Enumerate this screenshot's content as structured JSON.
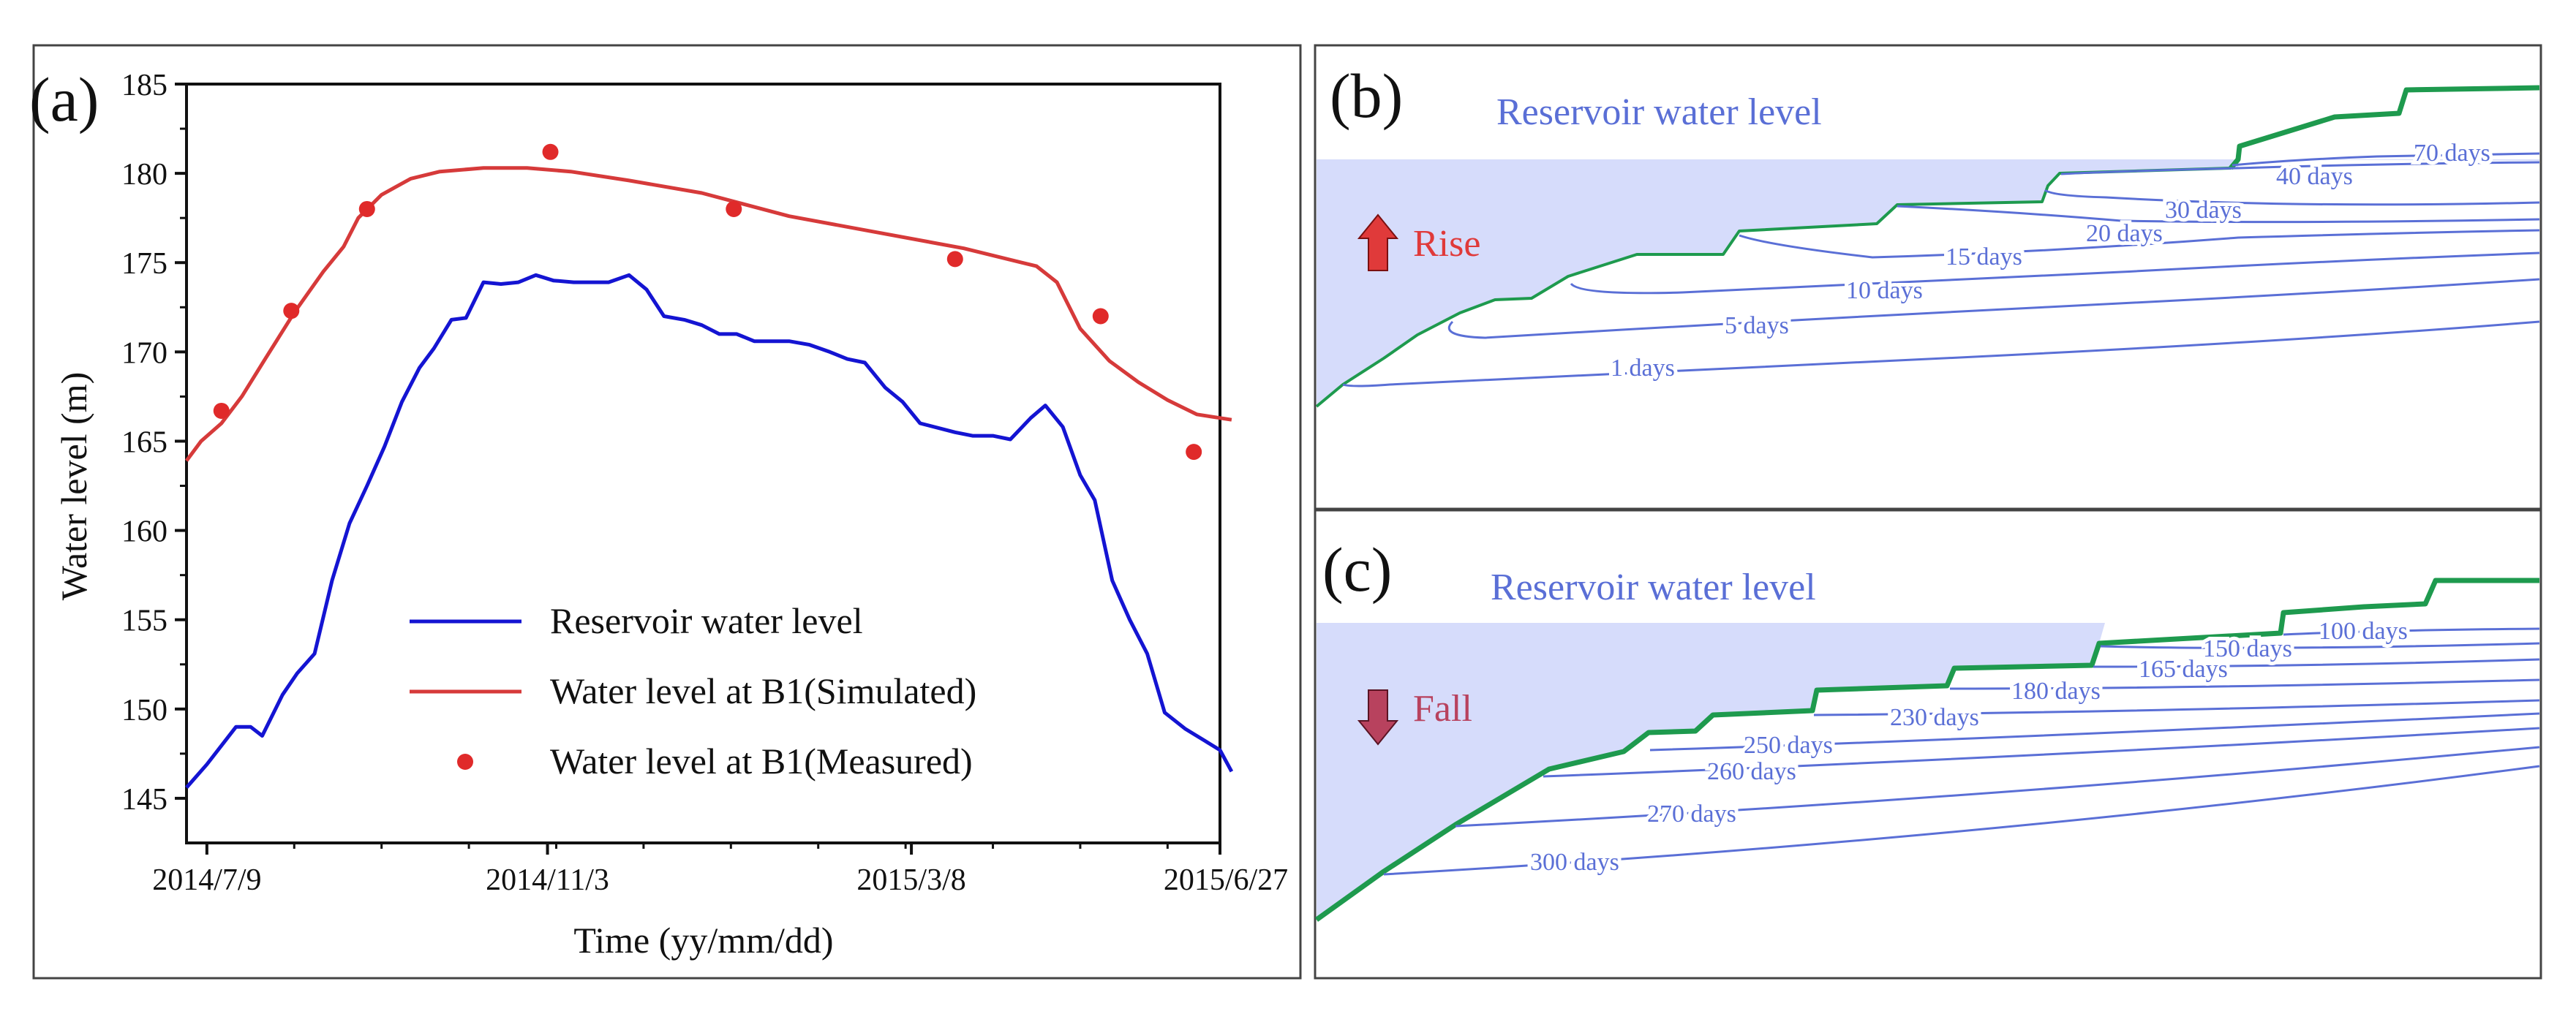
{
  "colors": {
    "reservoir_line": "#1414d2",
    "simulated_line": "#d63a3a",
    "measured_point": "#e02a2a",
    "shade": "#d6dcfb",
    "contour": "#5a6fd6",
    "reservoir_label": "#5a6fd6",
    "green_line": "#1e9a4e",
    "rise": "#e03a3a",
    "fall": "#b8425e"
  },
  "chart_data": [
    {
      "type": "line",
      "panel_label": "(a)",
      "title": "",
      "xlabel": "Time (yy/mm/dd)",
      "ylabel": "Water level (m)",
      "ylim": [
        142.5,
        185
      ],
      "xlim": [
        -7,
        348
      ],
      "x_unit": "days since 2014/7/9",
      "yticks": [
        145,
        150,
        155,
        160,
        165,
        170,
        175,
        180,
        185
      ],
      "xticks": [
        {
          "x": 0,
          "label": "2014/7/9"
        },
        {
          "x": 117,
          "label": "2014/11/3"
        },
        {
          "x": 242,
          "label": "2015/3/8"
        },
        {
          "x": 353,
          "label": "2015/6/27"
        }
      ],
      "legend_position": "lower-center",
      "series": [
        {
          "name": "Reservoir water level",
          "kind": "line",
          "points": [
            [
              -7,
              145.6
            ],
            [
              0,
              146.9
            ],
            [
              10,
              149
            ],
            [
              15,
              149
            ],
            [
              19,
              148.5
            ],
            [
              26,
              150.8
            ],
            [
              31,
              152
            ],
            [
              37,
              153.1
            ],
            [
              43,
              157.2
            ],
            [
              49,
              160.4
            ],
            [
              55,
              162.5
            ],
            [
              61,
              164.7
            ],
            [
              67,
              167.2
            ],
            [
              73,
              169.1
            ],
            [
              78,
              170.2
            ],
            [
              84,
              171.8
            ],
            [
              89,
              171.9
            ],
            [
              95,
              173.9
            ],
            [
              101,
              173.8
            ],
            [
              107,
              173.9
            ],
            [
              113,
              174.3
            ],
            [
              119,
              174
            ],
            [
              126,
              173.9
            ],
            [
              132,
              173.9
            ],
            [
              138,
              173.9
            ],
            [
              145,
              174.3
            ],
            [
              151,
              173.5
            ],
            [
              157,
              172
            ],
            [
              164,
              171.8
            ],
            [
              170,
              171.5
            ],
            [
              176,
              171
            ],
            [
              182,
              171
            ],
            [
              188,
              170.6
            ],
            [
              200,
              170.6
            ],
            [
              207,
              170.4
            ],
            [
              214,
              170
            ],
            [
              220,
              169.6
            ],
            [
              226,
              169.4
            ],
            [
              233,
              168
            ],
            [
              239,
              167.2
            ],
            [
              245,
              166
            ],
            [
              257,
              165.5
            ],
            [
              263,
              165.3
            ],
            [
              270,
              165.3
            ],
            [
              276,
              165.1
            ],
            [
              283,
              166.3
            ],
            [
              288,
              167
            ],
            [
              294,
              165.8
            ],
            [
              300,
              163.1
            ],
            [
              305,
              161.7
            ],
            [
              311,
              157.2
            ],
            [
              317,
              155
            ],
            [
              323,
              153.1
            ],
            [
              329,
              149.8
            ],
            [
              336,
              148.9
            ],
            [
              343,
              148.2
            ],
            [
              348,
              147.7
            ],
            [
              352,
              146.5
            ]
          ]
        },
        {
          "name": "Water level at B1(Simulated)",
          "kind": "line",
          "points": [
            [
              -7,
              163.9
            ],
            [
              -2,
              165
            ],
            [
              5,
              166
            ],
            [
              12,
              167.5
            ],
            [
              20,
              169.6
            ],
            [
              30,
              172.2
            ],
            [
              40,
              174.5
            ],
            [
              47,
              175.9
            ],
            [
              52,
              177.5
            ],
            [
              60,
              178.8
            ],
            [
              70,
              179.7
            ],
            [
              80,
              180.1
            ],
            [
              95,
              180.3
            ],
            [
              110,
              180.3
            ],
            [
              125,
              180.1
            ],
            [
              145,
              179.6
            ],
            [
              170,
              178.9
            ],
            [
              200,
              177.6
            ],
            [
              230,
              176.7
            ],
            [
              260,
              175.8
            ],
            [
              285,
              174.8
            ],
            [
              292,
              173.9
            ],
            [
              300,
              171.3
            ],
            [
              310,
              169.5
            ],
            [
              320,
              168.3
            ],
            [
              330,
              167.3
            ],
            [
              340,
              166.5
            ],
            [
              352,
              166.2
            ]
          ]
        },
        {
          "name": "Water level at B1(Measured)",
          "kind": "scatter",
          "points": [
            [
              5,
              166.7
            ],
            [
              29,
              172.3
            ],
            [
              55,
              178
            ],
            [
              118,
              181.2
            ],
            [
              181,
              178
            ],
            [
              257,
              175.2
            ],
            [
              307,
              172
            ],
            [
              339,
              164.4
            ]
          ]
        }
      ]
    },
    {
      "type": "diagram",
      "panel_label": "(b)",
      "title": "Reservoir water level",
      "direction_label": "Rise",
      "contour_labels": [
        "70 days",
        "40 days",
        "30 days",
        "20 days",
        "15 days",
        "10 days",
        "5 days",
        "1 days"
      ]
    },
    {
      "type": "diagram",
      "panel_label": "(c)",
      "title": "Reservoir water level",
      "direction_label": "Fall",
      "contour_labels": [
        "100 days",
        "150 days",
        "165 days",
        "180 days",
        "230 days",
        "250 days",
        "260 days",
        "270 days",
        "300 days"
      ]
    }
  ]
}
